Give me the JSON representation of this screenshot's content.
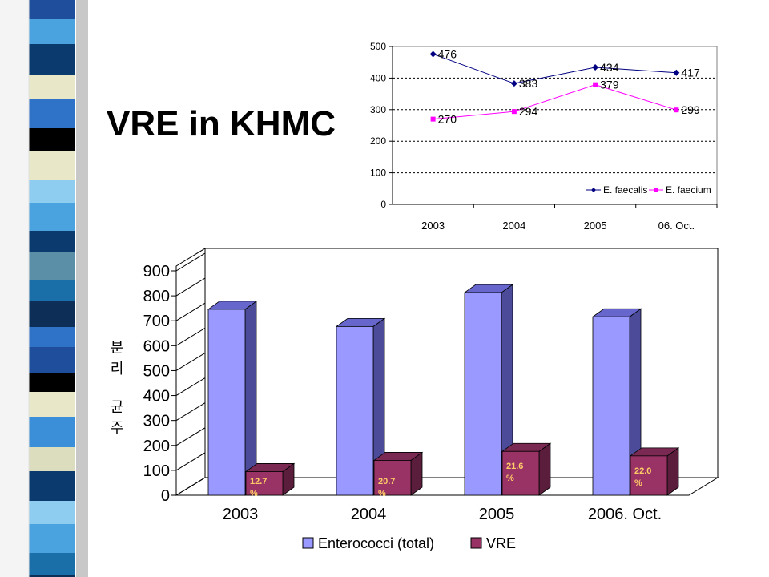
{
  "title": "VRE in KHMC",
  "colors": {
    "faecalis": "#000080",
    "faecium": "#ff00ff",
    "bar_total_face": "#9999ff",
    "bar_total_side": "#4b4b9a",
    "bar_total_top": "#6666cc",
    "bar_vre_face": "#993366",
    "bar_vre_side": "#5a1e3c",
    "bar_vre_top": "#7a2a52",
    "bar_label": "#ffcc66"
  },
  "chart_data": [
    {
      "type": "line",
      "categories": [
        "2003",
        "2004",
        "2005",
        "06. Oct."
      ],
      "ylim": [
        0,
        500
      ],
      "yticks": [
        "0",
        "100",
        "200",
        "300",
        "400",
        "500"
      ],
      "grid": "dashed horizontal",
      "legend": "bottom-right",
      "series": [
        {
          "name": "E. faecalis",
          "values": [
            476,
            383,
            434,
            417
          ],
          "labels": [
            "476",
            "383",
            "434",
            "417"
          ],
          "color": "#000080",
          "marker": "diamond"
        },
        {
          "name": "E. faecium",
          "values": [
            270,
            294,
            379,
            299
          ],
          "labels": [
            "270",
            "294",
            "379",
            "299"
          ],
          "color": "#ff00ff",
          "marker": "square"
        }
      ]
    },
    {
      "type": "bar",
      "categories": [
        "2003",
        "2004",
        "2005",
        "2006. Oct."
      ],
      "ylabel": "분리균주",
      "ylim": [
        0,
        900
      ],
      "yticks": [
        "0",
        "100",
        "200",
        "300",
        "400",
        "500",
        "600",
        "700",
        "800",
        "900"
      ],
      "legend": "bottom",
      "series": [
        {
          "name": "Enterococci (total)",
          "values": [
            746,
            677,
            813,
            716
          ]
        },
        {
          "name": "VRE",
          "values": [
            95,
            140,
            176,
            158
          ],
          "labels": [
            "12.7\n%",
            "20.7\n%",
            "21.6\n%",
            "22.0\n%"
          ]
        }
      ]
    }
  ]
}
